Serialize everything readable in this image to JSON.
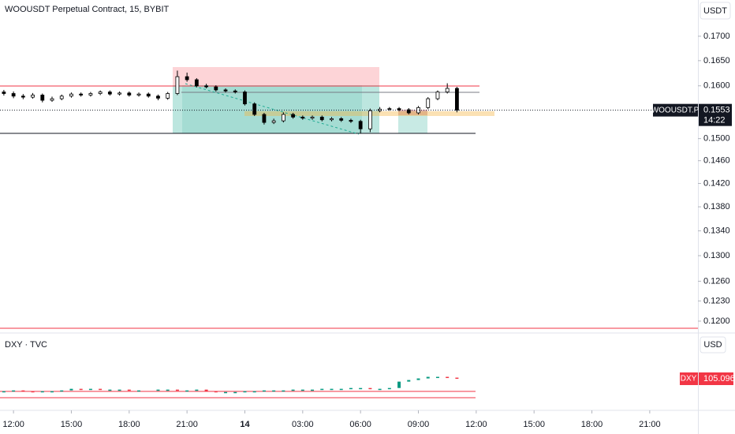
{
  "chart_data": [
    {
      "type": "candlestick",
      "title": "WOOUSDT Perpetual Contract, 15, BYBIT",
      "currency": "USDT",
      "log_scale": true,
      "up_color": "#ffffff",
      "down_color": "#000000",
      "border_color": "#000000",
      "x": [
        -0.5,
        0,
        0.5,
        1,
        1.5,
        2,
        2.5,
        3,
        3.5,
        4,
        4.5,
        5,
        5.5,
        6,
        6.5,
        7,
        7.5,
        8,
        8.5,
        9,
        9.5,
        10,
        10.5,
        11,
        11.5,
        12,
        12.5,
        13,
        13.5,
        14,
        14.5,
        15,
        15.5,
        16,
        16.5,
        17,
        17.5,
        18,
        18.5,
        19,
        19.5,
        20,
        20.5,
        21,
        21.5,
        22,
        22.5,
        23
      ],
      "open": [
        0.1588,
        0.1585,
        0.158,
        0.1578,
        0.1582,
        0.1572,
        0.1575,
        0.158,
        0.1584,
        0.1582,
        0.1585,
        0.1588,
        0.1584,
        0.1586,
        0.1582,
        0.1584,
        0.158,
        0.1576,
        0.1585,
        0.1618,
        0.1612,
        0.16,
        0.1598,
        0.1592,
        0.159,
        0.1588,
        0.1565,
        0.1545,
        0.153,
        0.1533,
        0.1545,
        0.154,
        0.1538,
        0.154,
        0.1535,
        0.1537,
        0.1534,
        0.1532,
        0.1518,
        0.1552,
        0.1555,
        0.1556,
        0.1554,
        0.1548,
        0.1558,
        0.1575,
        0.1588,
        0.1595
      ],
      "high": [
        0.1592,
        0.1589,
        0.1584,
        0.1586,
        0.1585,
        0.1579,
        0.1583,
        0.1587,
        0.1587,
        0.1588,
        0.1591,
        0.1591,
        0.1589,
        0.1589,
        0.1587,
        0.1587,
        0.1583,
        0.1588,
        0.163,
        0.1626,
        0.1615,
        0.1604,
        0.1601,
        0.1595,
        0.1593,
        0.1591,
        0.1568,
        0.1548,
        0.1537,
        0.1549,
        0.1548,
        0.1543,
        0.1543,
        0.1543,
        0.154,
        0.154,
        0.1537,
        0.1535,
        0.1556,
        0.1559,
        0.1559,
        0.1559,
        0.1557,
        0.1561,
        0.1578,
        0.1591,
        0.1605,
        0.1598
      ],
      "low": [
        0.1581,
        0.1576,
        0.1574,
        0.1575,
        0.1568,
        0.1569,
        0.1572,
        0.1577,
        0.1579,
        0.1579,
        0.1582,
        0.1581,
        0.1581,
        0.1579,
        0.1579,
        0.1577,
        0.1572,
        0.1573,
        0.1582,
        0.1608,
        0.1597,
        0.1595,
        0.1589,
        0.1587,
        0.1585,
        0.1562,
        0.1542,
        0.1526,
        0.1527,
        0.153,
        0.1537,
        0.1535,
        0.1535,
        0.1532,
        0.1532,
        0.1531,
        0.1529,
        0.151,
        0.1512,
        0.1549,
        0.1552,
        0.1551,
        0.1545,
        0.1545,
        0.1555,
        0.1572,
        0.1585,
        0.1549
      ],
      "close": [
        0.1585,
        0.158,
        0.1578,
        0.1582,
        0.1572,
        0.1575,
        0.158,
        0.1584,
        0.1582,
        0.1585,
        0.1588,
        0.1584,
        0.1586,
        0.1582,
        0.1584,
        0.158,
        0.1576,
        0.1585,
        0.1618,
        0.1612,
        0.16,
        0.1598,
        0.1592,
        0.159,
        0.1588,
        0.1565,
        0.1545,
        0.153,
        0.1533,
        0.1545,
        0.154,
        0.1538,
        0.154,
        0.1535,
        0.1537,
        0.1534,
        0.1532,
        0.1518,
        0.1552,
        0.1555,
        0.1556,
        0.1554,
        0.1548,
        0.1558,
        0.1575,
        0.1588,
        0.1595,
        0.1553
      ],
      "ylim": [
        0.1185,
        0.1777
      ],
      "yticks": [
        {
          "value": 0.17,
          "label": "0.1700"
        },
        {
          "value": 0.165,
          "label": "0.1650"
        },
        {
          "value": 0.16,
          "label": "0.1600"
        },
        {
          "value": 0.15,
          "label": "0.1500"
        },
        {
          "value": 0.146,
          "label": "0.1460"
        },
        {
          "value": 0.142,
          "label": "0.1420"
        },
        {
          "value": 0.138,
          "label": "0.1380"
        },
        {
          "value": 0.134,
          "label": "0.1340"
        },
        {
          "value": 0.13,
          "label": "0.1300"
        },
        {
          "value": 0.126,
          "label": "0.1260"
        },
        {
          "value": 0.123,
          "label": "0.1230"
        },
        {
          "value": 0.12,
          "label": "0.1200"
        }
      ],
      "xlim": [
        -0.7,
        35.5
      ],
      "xticks": [
        {
          "value": 0,
          "label": "12:00"
        },
        {
          "value": 3,
          "label": "15:00"
        },
        {
          "value": 6,
          "label": "18:00"
        },
        {
          "value": 9,
          "label": "21:00"
        },
        {
          "value": 12,
          "label": "14"
        },
        {
          "value": 15,
          "label": "03:00"
        },
        {
          "value": 18,
          "label": "06:00"
        },
        {
          "value": 21,
          "label": "09:00"
        },
        {
          "value": 24,
          "label": "12:00"
        },
        {
          "value": 27,
          "label": "15:00"
        },
        {
          "value": 30,
          "label": "18:00"
        },
        {
          "value": 33,
          "label": "21:00"
        }
      ],
      "last_price": {
        "symbol": "WOOUSDT.P",
        "value": 0.1553,
        "label": "0.1553",
        "countdown": "14:22"
      }
    },
    {
      "type": "candlestick-close",
      "title": "DXY · TVC",
      "currency": "USD",
      "up_color": "#089981",
      "down_color": "#f23645",
      "close": [
        104.94,
        104.95,
        104.94,
        104.93,
        104.94,
        104.94,
        104.95,
        104.97,
        104.96,
        104.97,
        104.96,
        104.96,
        104.96,
        104.95,
        104.95,
        null,
        104.96,
        104.96,
        104.95,
        104.95,
        104.96,
        104.94,
        104.93,
        104.93,
        104.93,
        104.94,
        104.94,
        104.95,
        104.95,
        104.95,
        104.96,
        104.96,
        104.96,
        104.97,
        104.97,
        104.97,
        104.98,
        104.98,
        104.97,
        104.97,
        104.98,
        105.06,
        105.08,
        105.1,
        105.12,
        105.12,
        105.11,
        105.096
      ],
      "ylim": [
        104.7,
        105.65
      ],
      "last_price": {
        "symbol": "DXY",
        "value": 105.096,
        "label": "105.096"
      }
    }
  ]
}
